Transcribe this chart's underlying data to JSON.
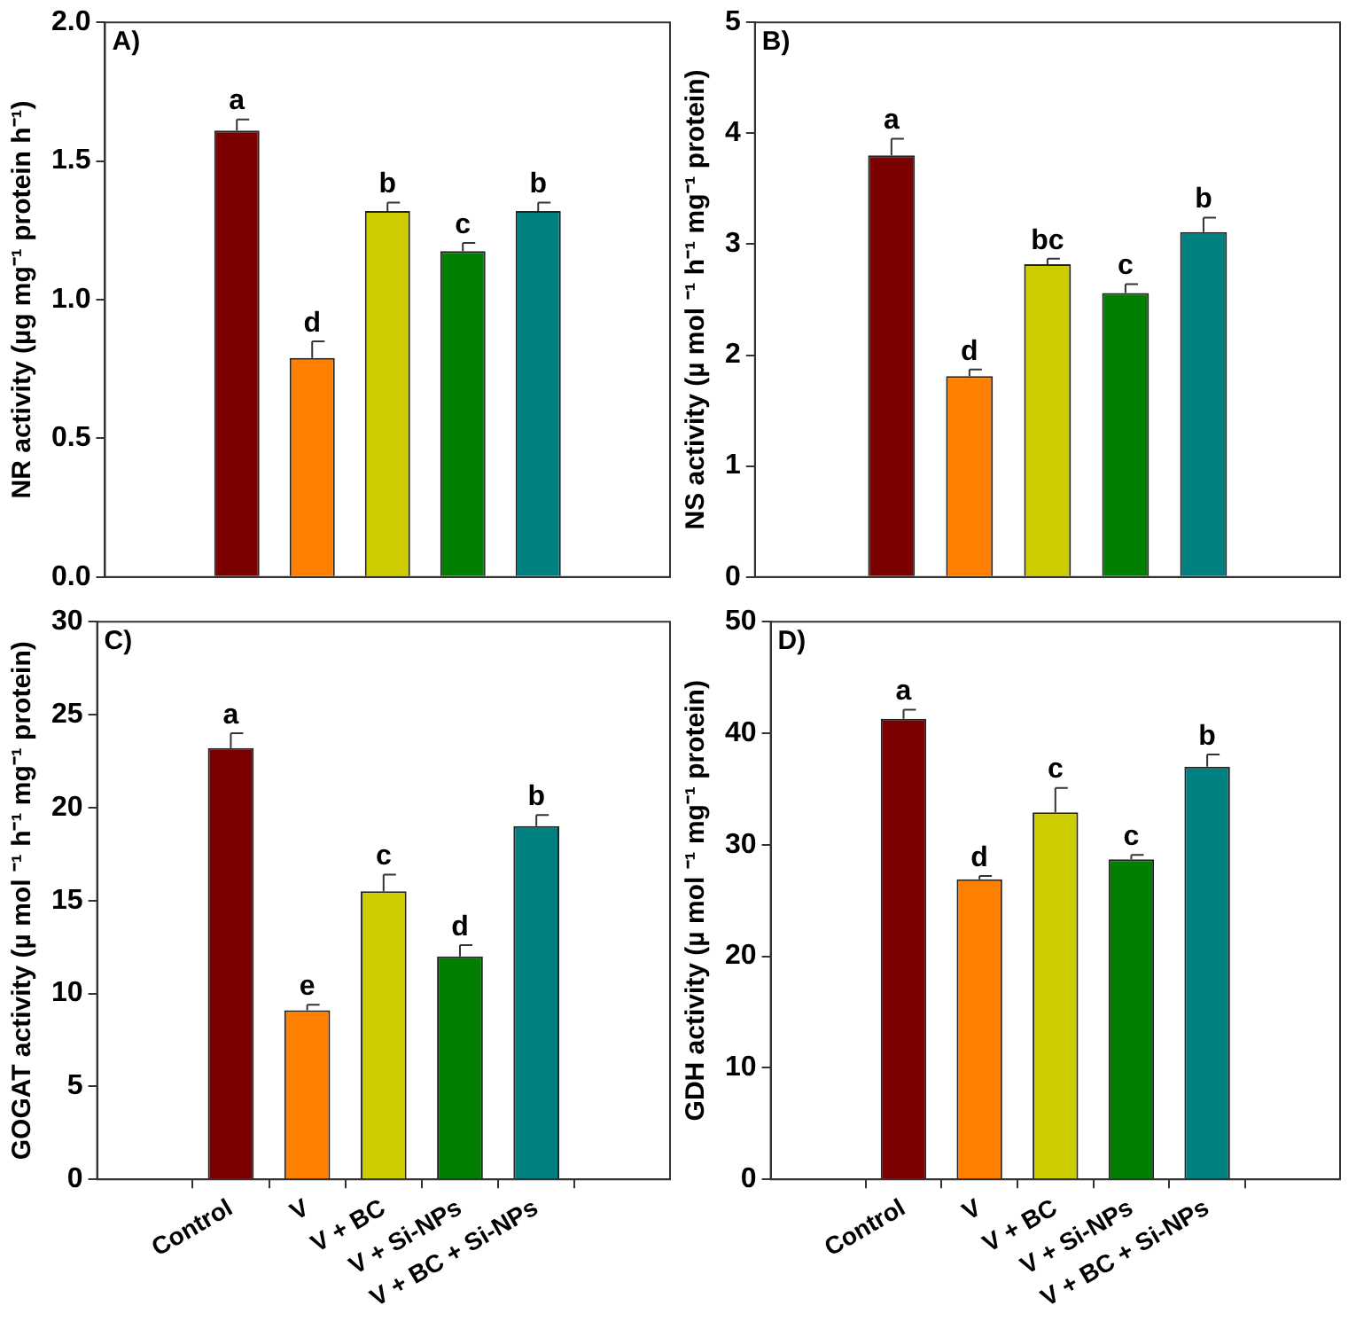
{
  "chart_data": [
    {
      "type": "bar",
      "title": "A)",
      "ylabel": "NR activity (µg mg⁻¹ protein h⁻¹)",
      "categories": [
        "Control",
        "V",
        "V + BC",
        "V + Si-NPs",
        "V + BC + Si-NPs"
      ],
      "values": [
        1.61,
        0.79,
        1.32,
        1.175,
        1.32
      ],
      "errors": [
        0.04,
        0.06,
        0.03,
        0.03,
        0.03
      ],
      "colors": [
        "#7b0000",
        "#ff8000",
        "#cccc00",
        "#007f00",
        "#008080"
      ],
      "ylim": [
        0,
        2
      ],
      "yticks": [
        {
          "value": 0,
          "label": "0.0"
        },
        {
          "value": 0.5,
          "label": "0.5"
        },
        {
          "value": 1,
          "label": "1.0"
        },
        {
          "value": 1.5,
          "label": "1.5"
        },
        {
          "value": 2,
          "label": "2.0"
        }
      ],
      "tick_labels": "y",
      "grid": false,
      "legend": false,
      "annotations": [
        {
          "text": "a",
          "x": "Control",
          "y": 1.65
        },
        {
          "text": "d",
          "x": "V",
          "y": 0.85
        },
        {
          "text": "b",
          "x": "V + BC",
          "y": 1.35
        },
        {
          "text": "c",
          "x": "V + Si-NPs",
          "y": 1.205
        },
        {
          "text": "b",
          "x": "V + BC + Si-NPs",
          "y": 1.35
        }
      ]
    },
    {
      "type": "bar",
      "title": "B)",
      "ylabel": "NS activity (µ mol ⁻¹ h⁻¹ mg⁻¹ protein)",
      "categories": [
        "Control",
        "V",
        "V + BC",
        "V + Si-NPs",
        "V + BC + Si-NPs"
      ],
      "values": [
        3.8,
        1.81,
        2.82,
        2.56,
        3.11
      ],
      "errors": [
        0.15,
        0.06,
        0.05,
        0.08,
        0.13
      ],
      "colors": [
        "#7b0000",
        "#ff8000",
        "#cccc00",
        "#007f00",
        "#008080"
      ],
      "ylim": [
        0,
        5
      ],
      "yticks": [
        0,
        1,
        2,
        3,
        4,
        5
      ],
      "tick_labels": "y",
      "grid": false,
      "legend": false,
      "annotations": [
        {
          "text": "a",
          "x": "Control",
          "y": 3.95
        },
        {
          "text": "d",
          "x": "V",
          "y": 1.87
        },
        {
          "text": "bc",
          "x": "V + BC",
          "y": 2.87
        },
        {
          "text": "c",
          "x": "V + Si-NPs",
          "y": 2.64
        },
        {
          "text": "b",
          "x": "V + BC + Si-NPs",
          "y": 3.24
        }
      ]
    },
    {
      "type": "bar",
      "title": "C)",
      "ylabel": "GOGAT activity (µ mol ⁻¹ h⁻¹ mg⁻¹ protein)",
      "categories": [
        "Control",
        "V",
        "V + BC",
        "V + Si-NPs",
        "V + BC + Si-NPs"
      ],
      "values": [
        23.2,
        9.1,
        15.5,
        12,
        19
      ],
      "errors": [
        0.8,
        0.3,
        0.9,
        0.6,
        0.6
      ],
      "colors": [
        "#7b0000",
        "#ff8000",
        "#cccc00",
        "#007f00",
        "#008080"
      ],
      "ylim": [
        0,
        30
      ],
      "yticks": [
        0,
        5,
        10,
        15,
        20,
        25,
        30
      ],
      "grid": false,
      "legend": false,
      "annotations": [
        {
          "text": "a",
          "x": "Control",
          "y": 24
        },
        {
          "text": "e",
          "x": "V",
          "y": 9.4
        },
        {
          "text": "c",
          "x": "V + BC",
          "y": 16.4
        },
        {
          "text": "d",
          "x": "V + Si-NPs",
          "y": 12.6
        },
        {
          "text": "b",
          "x": "V + BC + Si-NPs",
          "y": 19.6
        }
      ]
    },
    {
      "type": "bar",
      "title": "D)",
      "ylabel": "GDH activity (µ mol ⁻¹ mg⁻¹ protein)",
      "categories": [
        "Control",
        "V",
        "V + BC",
        "V + Si-NPs",
        "V + BC + Si-NPs"
      ],
      "values": [
        41.3,
        26.9,
        32.9,
        28.7,
        37
      ],
      "errors": [
        0.8,
        0.3,
        2.2,
        0.4,
        1.1
      ],
      "colors": [
        "#7b0000",
        "#ff8000",
        "#cccc00",
        "#007f00",
        "#008080"
      ],
      "ylim": [
        0,
        50
      ],
      "yticks": [
        0,
        10,
        20,
        30,
        40,
        50
      ],
      "grid": false,
      "legend": false,
      "annotations": [
        {
          "text": "a",
          "x": "Control",
          "y": 42.1
        },
        {
          "text": "d",
          "x": "V",
          "y": 27.2
        },
        {
          "text": "c",
          "x": "V + BC",
          "y": 35.1
        },
        {
          "text": "c",
          "x": "V + Si-NPs",
          "y": 29.1
        },
        {
          "text": "b",
          "x": "V + BC + Si-NPs",
          "y": 38.1
        }
      ]
    }
  ]
}
